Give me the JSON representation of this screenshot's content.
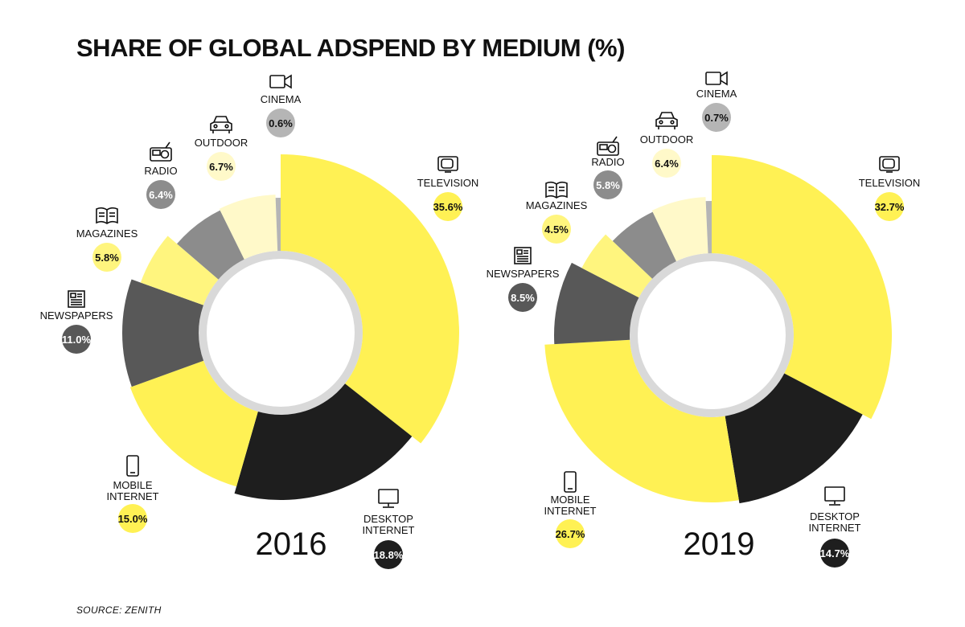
{
  "page": {
    "title": "SHARE OF GLOBAL ADSPEND BY MEDIUM (%)",
    "source": "SOURCE: ZENITH"
  },
  "chart_data": [
    {
      "type": "pie",
      "year_label": "2016",
      "slices": [
        {
          "key": "television",
          "label": [
            "TELEVISION"
          ],
          "value": 35.6,
          "value_label": "35.6%",
          "color": "#FFF154",
          "badge_color": "#FFF154",
          "badge_text_color": "#111111",
          "icon": "television-icon"
        },
        {
          "key": "desktop",
          "label": [
            "DESKTOP",
            "INTERNET"
          ],
          "value": 18.8,
          "value_label": "18.8%",
          "color": "#1E1E1E",
          "badge_color": "#1E1E1E",
          "badge_text_color": "#ffffff",
          "icon": "desktop-icon"
        },
        {
          "key": "mobile",
          "label": [
            "MOBILE",
            "INTERNET"
          ],
          "value": 15.0,
          "value_label": "15.0%",
          "color": "#FFF154",
          "badge_color": "#FFF154",
          "badge_text_color": "#111111",
          "icon": "mobile-icon"
        },
        {
          "key": "newspapers",
          "label": [
            "NEWSPAPERS"
          ],
          "value": 11.0,
          "value_label": "11.0%",
          "color": "#585858",
          "badge_color": "#585858",
          "badge_text_color": "#ffffff",
          "icon": "newspaper-icon"
        },
        {
          "key": "magazines",
          "label": [
            "MAGAZINES"
          ],
          "value": 5.8,
          "value_label": "5.8%",
          "color": "#FFF57E",
          "badge_color": "#FFF57E",
          "badge_text_color": "#111111",
          "icon": "magazine-icon"
        },
        {
          "key": "radio",
          "label": [
            "RADIO"
          ],
          "value": 6.4,
          "value_label": "6.4%",
          "color": "#8C8C8C",
          "badge_color": "#8C8C8C",
          "badge_text_color": "#ffffff",
          "icon": "radio-icon"
        },
        {
          "key": "outdoor",
          "label": [
            "OUTDOOR"
          ],
          "value": 6.7,
          "value_label": "6.7%",
          "color": "#FFF9C9",
          "badge_color": "#FFF9C9",
          "badge_text_color": "#111111",
          "icon": "car-icon"
        },
        {
          "key": "cinema",
          "label": [
            "CINEMA"
          ],
          "value": 0.6,
          "value_label": "0.6%",
          "color": "#B5B5B5",
          "badge_color": "#B5B5B5",
          "badge_text_color": "#111111",
          "icon": "video-camera-icon"
        }
      ]
    },
    {
      "type": "pie",
      "year_label": "2019",
      "slices": [
        {
          "key": "television",
          "label": [
            "TELEVISION"
          ],
          "value": 32.7,
          "value_label": "32.7%",
          "color": "#FFF154",
          "badge_color": "#FFF154",
          "badge_text_color": "#111111",
          "icon": "television-icon"
        },
        {
          "key": "desktop",
          "label": [
            "DESKTOP",
            "INTERNET"
          ],
          "value": 14.7,
          "value_label": "14.7%",
          "color": "#1E1E1E",
          "badge_color": "#1E1E1E",
          "badge_text_color": "#ffffff",
          "icon": "desktop-icon"
        },
        {
          "key": "mobile",
          "label": [
            "MOBILE",
            "INTERNET"
          ],
          "value": 26.7,
          "value_label": "26.7%",
          "color": "#FFF154",
          "badge_color": "#FFF154",
          "badge_text_color": "#111111",
          "icon": "mobile-icon"
        },
        {
          "key": "newspapers",
          "label": [
            "NEWSPAPERS"
          ],
          "value": 8.5,
          "value_label": "8.5%",
          "color": "#585858",
          "badge_color": "#585858",
          "badge_text_color": "#ffffff",
          "icon": "newspaper-icon"
        },
        {
          "key": "magazines",
          "label": [
            "MAGAZINES"
          ],
          "value": 4.5,
          "value_label": "4.5%",
          "color": "#FFF57E",
          "badge_color": "#FFF57E",
          "badge_text_color": "#111111",
          "icon": "magazine-icon"
        },
        {
          "key": "radio",
          "label": [
            "RADIO"
          ],
          "value": 5.8,
          "value_label": "5.8%",
          "color": "#8C8C8C",
          "badge_color": "#8C8C8C",
          "badge_text_color": "#ffffff",
          "icon": "radio-icon"
        },
        {
          "key": "outdoor",
          "label": [
            "OUTDOOR"
          ],
          "value": 6.4,
          "value_label": "6.4%",
          "color": "#FFF9C9",
          "badge_color": "#FFF9C9",
          "badge_text_color": "#111111",
          "icon": "car-icon"
        },
        {
          "key": "cinema",
          "label": [
            "CINEMA"
          ],
          "value": 0.7,
          "value_label": "0.7%",
          "color": "#B5B5B5",
          "badge_color": "#B5B5B5",
          "badge_text_color": "#111111",
          "icon": "video-camera-icon"
        }
      ]
    }
  ]
}
